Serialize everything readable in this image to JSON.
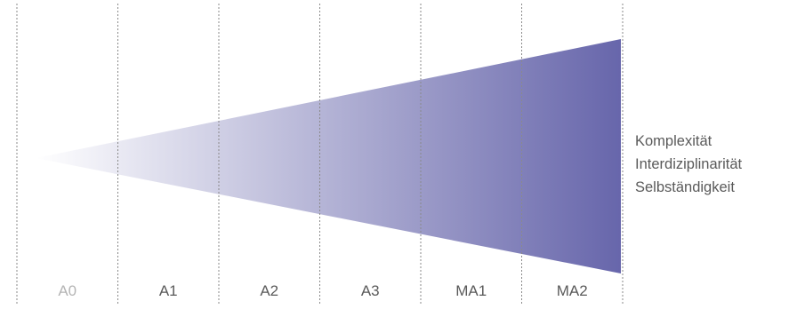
{
  "stages": [
    {
      "label": "A0",
      "muted": true
    },
    {
      "label": "A1",
      "muted": false
    },
    {
      "label": "A2",
      "muted": false
    },
    {
      "label": "A3",
      "muted": false
    },
    {
      "label": "MA1",
      "muted": false
    },
    {
      "label": "MA2",
      "muted": false
    }
  ],
  "dimensions": [
    {
      "label": "Komplexität"
    },
    {
      "label": "Interdiziplinarität"
    },
    {
      "label": "Selbständigkeit"
    }
  ],
  "colors": {
    "wedge_start": "#ffffff",
    "wedge_end": "#6766ab",
    "divider": "#8a8a8a",
    "label_text": "#5a5a5a",
    "label_text_muted": "#b4b4b4",
    "dimension_text": "#5a5a5a"
  }
}
